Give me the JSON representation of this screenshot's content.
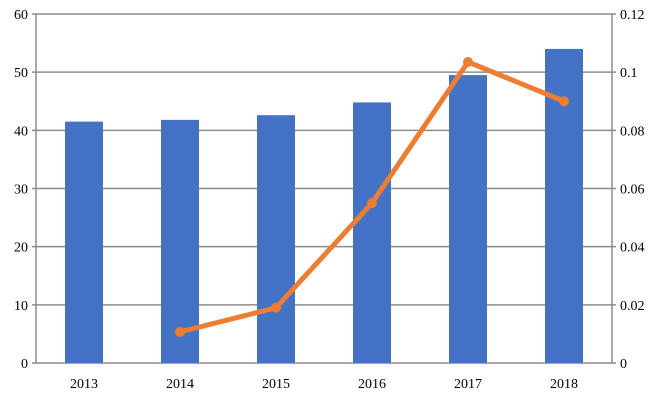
{
  "chart_data": {
    "type": "bar+line",
    "categories": [
      "2013",
      "2014",
      "2015",
      "2016",
      "2017",
      "2018"
    ],
    "series": [
      {
        "type": "bar",
        "axis": "left",
        "color": "#4472C4",
        "values": [
          41.5,
          41.8,
          42.6,
          44.8,
          49.5,
          54
        ]
      },
      {
        "type": "line",
        "axis": "right",
        "color": "#ED7D31",
        "values": [
          null,
          0.0107,
          0.019,
          0.055,
          0.1035,
          0.09
        ]
      }
    ],
    "y_left": {
      "range": [
        0,
        60
      ],
      "ticks": [
        "0",
        "10",
        "20",
        "30",
        "40",
        "50",
        "60"
      ]
    },
    "y_right": {
      "range": [
        0,
        0.12
      ],
      "ticks": [
        "0",
        "0.02",
        "0.04",
        "0.06",
        "0.08",
        "0.1",
        "0.12"
      ]
    },
    "grid": true,
    "legend": "none"
  }
}
